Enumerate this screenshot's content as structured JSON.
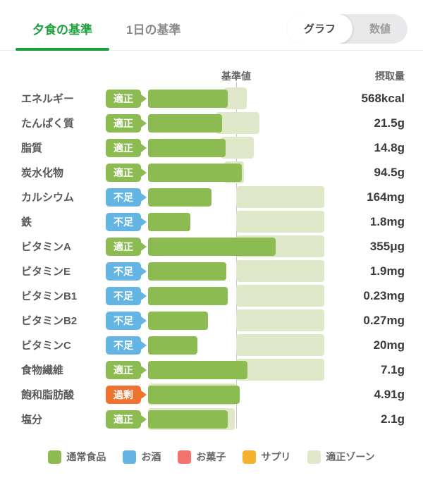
{
  "header": {
    "tabs": [
      {
        "label": "夕食の基準",
        "active": true
      },
      {
        "label": "1日の基準",
        "active": false
      }
    ],
    "view_toggle": [
      {
        "label": "グラフ",
        "selected": true
      },
      {
        "label": "数値",
        "selected": false
      }
    ]
  },
  "columns": {
    "standard": "基準値",
    "intake": "摂取量"
  },
  "chart_data": {
    "type": "bar",
    "orientation": "horizontal",
    "axis_range": [
      0,
      250
    ],
    "standard_line": 125,
    "rows": [
      {
        "label": "エネルギー",
        "status": "適正",
        "status_type": "appropriate",
        "value": "568kcal",
        "bar": 113,
        "zone": [
          108,
          140
        ]
      },
      {
        "label": "たんぱく質",
        "status": "適正",
        "status_type": "appropriate",
        "value": "21.5g",
        "bar": 105,
        "zone": [
          96,
          158
        ]
      },
      {
        "label": "脂質",
        "status": "適正",
        "status_type": "appropriate",
        "value": "14.8g",
        "bar": 110,
        "zone": [
          103,
          150
        ]
      },
      {
        "label": "炭水化物",
        "status": "適正",
        "status_type": "appropriate",
        "value": "94.5g",
        "bar": 133,
        "zone": [
          108,
          136
        ]
      },
      {
        "label": "カルシウム",
        "status": "不足",
        "status_type": "insufficient",
        "value": "164mg",
        "bar": 90,
        "zone": [
          125,
          250
        ]
      },
      {
        "label": "鉄",
        "status": "不足",
        "status_type": "insufficient",
        "value": "1.8mg",
        "bar": 60,
        "zone": [
          125,
          250
        ]
      },
      {
        "label": "ビタミンA",
        "status": "適正",
        "status_type": "appropriate",
        "value": "355μg",
        "bar": 181,
        "zone": [
          125,
          250
        ]
      },
      {
        "label": "ビタミンE",
        "status": "不足",
        "status_type": "insufficient",
        "value": "1.9mg",
        "bar": 111,
        "zone": [
          125,
          250
        ]
      },
      {
        "label": "ビタミンB1",
        "status": "不足",
        "status_type": "insufficient",
        "value": "0.23mg",
        "bar": 113,
        "zone": [
          125,
          250
        ]
      },
      {
        "label": "ビタミンB2",
        "status": "不足",
        "status_type": "insufficient",
        "value": "0.27mg",
        "bar": 85,
        "zone": [
          125,
          250
        ]
      },
      {
        "label": "ビタミンC",
        "status": "不足",
        "status_type": "insufficient",
        "value": "20mg",
        "bar": 70,
        "zone": [
          125,
          250
        ]
      },
      {
        "label": "食物繊維",
        "status": "適正",
        "status_type": "appropriate",
        "value": "7.1g",
        "bar": 141,
        "zone": [
          125,
          250
        ]
      },
      {
        "label": "飽和脂肪酸",
        "status": "過剰",
        "status_type": "excess",
        "value": "4.91g",
        "bar": 130,
        "zone": [
          0,
          125
        ]
      },
      {
        "label": "塩分",
        "status": "適正",
        "status_type": "appropriate",
        "value": "2.1g",
        "bar": 113,
        "zone": [
          0,
          123
        ]
      }
    ]
  },
  "legend": [
    {
      "label": "通常食品",
      "color": "#8cbb52"
    },
    {
      "label": "お酒",
      "color": "#64b5e3"
    },
    {
      "label": "お菓子",
      "color": "#f4726e"
    },
    {
      "label": "サプリ",
      "color": "#f6b22f"
    },
    {
      "label": "適正ゾーン",
      "color": "#dfe9ca"
    }
  ],
  "colors": {
    "accent_green": "#1ea03c",
    "bar_green": "#8cbb52",
    "status_ok": "#8cbb52",
    "status_low": "#64b5e3",
    "status_high": "#ee7331",
    "zone": "#dfe9ca",
    "standard_line": "#c9c9c9"
  }
}
